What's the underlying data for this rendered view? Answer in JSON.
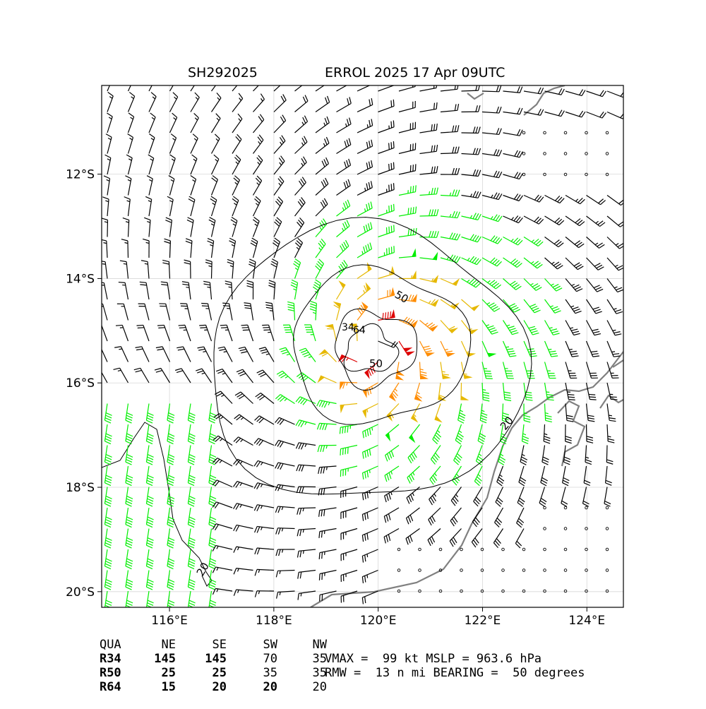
{
  "header": {
    "storm_id": "SH292025",
    "storm_title": "ERROL 2025 17 Apr 09UTC"
  },
  "map": {
    "lon_range": [
      114.7,
      124.7
    ],
    "lat_range": [
      -20.3,
      -10.3
    ],
    "lon_ticks": [
      116,
      118,
      120,
      122,
      124
    ],
    "lon_tick_labels": [
      "116°E",
      "118°E",
      "120°E",
      "122°E",
      "124°E"
    ],
    "lat_ticks": [
      -12,
      -14,
      -16,
      -18,
      -20
    ],
    "lat_tick_labels": [
      "12°S",
      "14°S",
      "16°S",
      "18°S",
      "20°S"
    ],
    "storm_center": {
      "lon": 119.9,
      "lat": -15.3
    },
    "contour_labels": [
      "50",
      "34",
      "64",
      "50",
      "20",
      "20"
    ],
    "wind_colors": {
      "below_34": "#000000",
      "r34": "#00ee00",
      "r50": "#e6b800",
      "r64_outer": "#ff8c00",
      "r64": "#dd0000"
    },
    "coastline_color": "#808080"
  },
  "wind_radii": {
    "headers": [
      "QUA",
      "NE",
      "SE",
      "SW",
      "NW"
    ],
    "rows": [
      {
        "label": "R34",
        "values": [
          "145",
          "145",
          "70",
          "35"
        ]
      },
      {
        "label": "R50",
        "values": [
          "25",
          "25",
          "35",
          "35"
        ]
      },
      {
        "label": "R64",
        "values": [
          "15",
          "20",
          "20",
          "20"
        ]
      }
    ]
  },
  "stats": {
    "line1": "VMAX =  99 kt MSLP = 963.6 hPa",
    "line2": "RMW =  13 n mi BEARING =  50 degrees"
  }
}
